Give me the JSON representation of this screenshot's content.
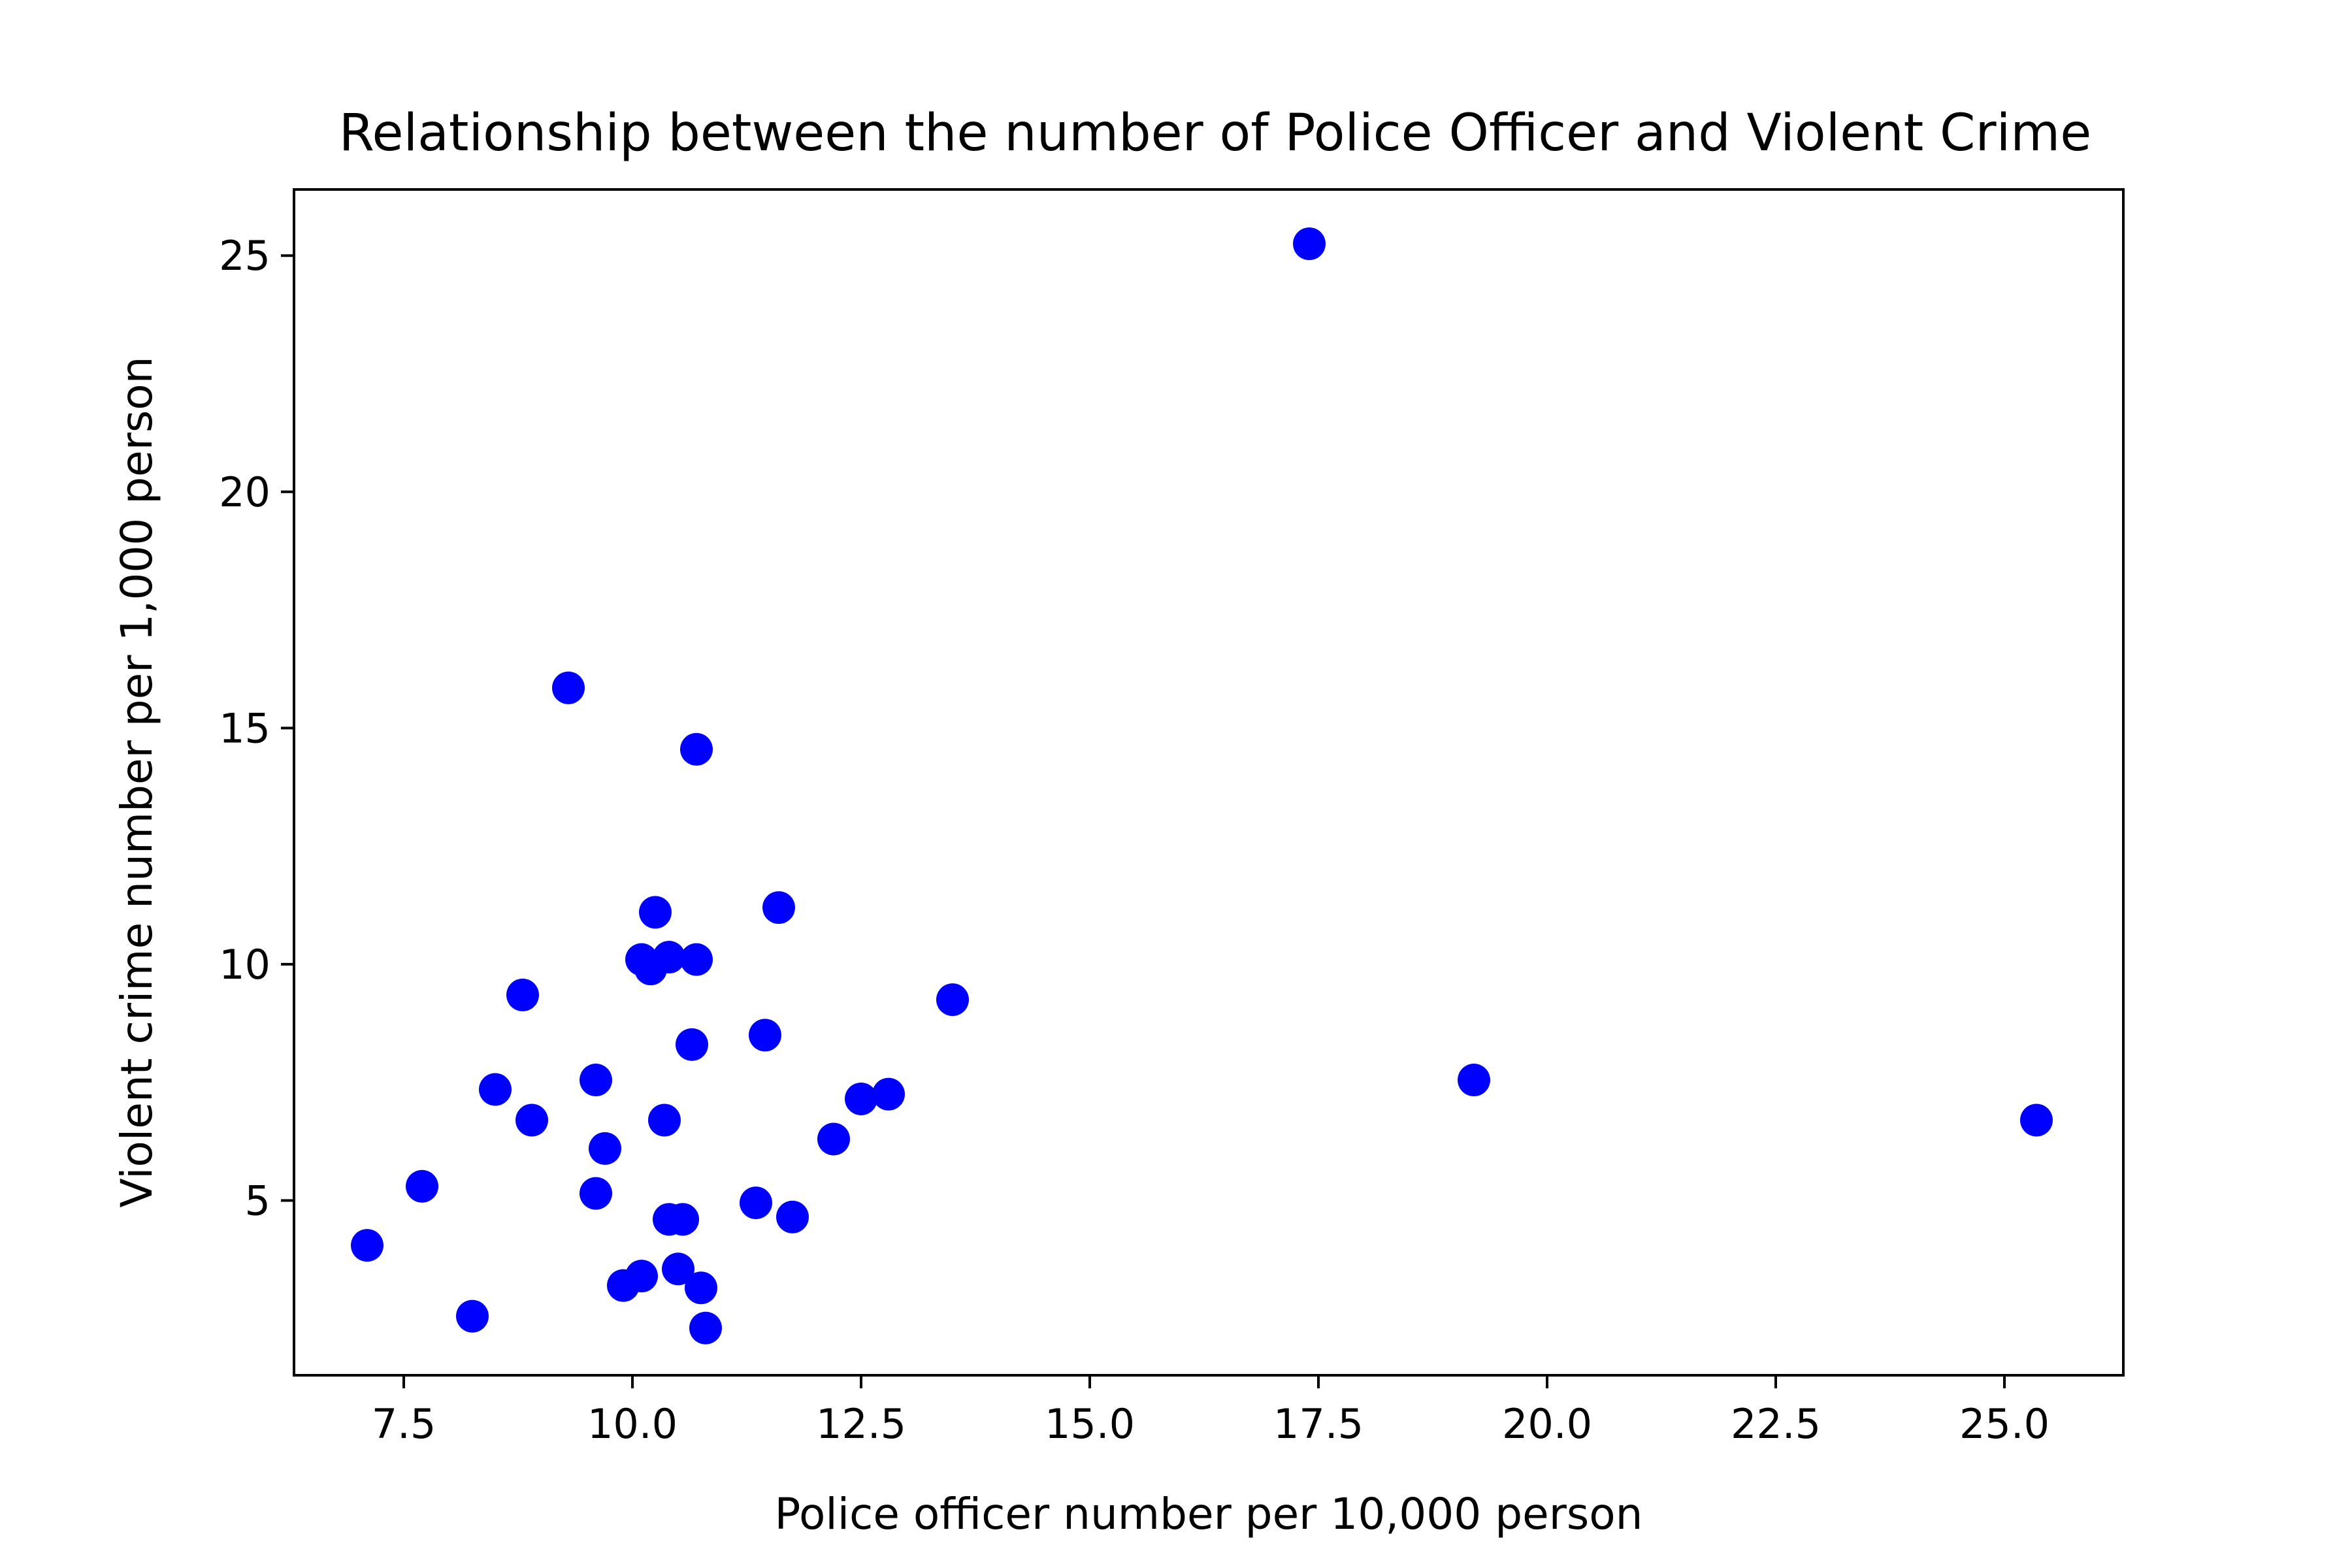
{
  "chart_data": {
    "type": "scatter",
    "title": "Relationship between the number of Police Officer and Violent Crime",
    "xlabel": "Police officer number per 10,000 person",
    "ylabel": "Violent crime number per 1,000 person",
    "xlim": [
      6.3,
      26.3
    ],
    "ylim": [
      1.3,
      26.4
    ],
    "xticks": [
      7.5,
      10.0,
      12.5,
      15.0,
      17.5,
      20.0,
      22.5,
      25.0
    ],
    "xtick_labels": [
      "7.5",
      "10.0",
      "12.5",
      "15.0",
      "17.5",
      "20.0",
      "22.5",
      "25.0"
    ],
    "yticks": [
      5,
      10,
      15,
      20,
      25
    ],
    "ytick_labels": [
      "5",
      "10",
      "15",
      "20",
      "25"
    ],
    "grid": false,
    "legend": "none",
    "marker_color": "#0000ff",
    "points": [
      {
        "x": 7.1,
        "y": 4.05
      },
      {
        "x": 7.7,
        "y": 5.3
      },
      {
        "x": 8.25,
        "y": 2.55
      },
      {
        "x": 8.5,
        "y": 7.35
      },
      {
        "x": 8.8,
        "y": 9.35
      },
      {
        "x": 8.9,
        "y": 6.7
      },
      {
        "x": 9.3,
        "y": 15.85
      },
      {
        "x": 9.6,
        "y": 7.55
      },
      {
        "x": 9.6,
        "y": 5.15
      },
      {
        "x": 9.7,
        "y": 6.1
      },
      {
        "x": 9.9,
        "y": 3.2
      },
      {
        "x": 10.1,
        "y": 3.4
      },
      {
        "x": 10.1,
        "y": 10.1
      },
      {
        "x": 10.2,
        "y": 9.9
      },
      {
        "x": 10.25,
        "y": 11.1
      },
      {
        "x": 10.35,
        "y": 6.7
      },
      {
        "x": 10.4,
        "y": 10.15
      },
      {
        "x": 10.4,
        "y": 4.6
      },
      {
        "x": 10.5,
        "y": 3.55
      },
      {
        "x": 10.55,
        "y": 4.6
      },
      {
        "x": 10.65,
        "y": 8.3
      },
      {
        "x": 10.7,
        "y": 14.55
      },
      {
        "x": 10.7,
        "y": 10.1
      },
      {
        "x": 10.75,
        "y": 3.15
      },
      {
        "x": 10.8,
        "y": 2.3
      },
      {
        "x": 11.35,
        "y": 4.95
      },
      {
        "x": 11.45,
        "y": 8.5
      },
      {
        "x": 11.6,
        "y": 11.2
      },
      {
        "x": 11.75,
        "y": 4.65
      },
      {
        "x": 12.2,
        "y": 6.3
      },
      {
        "x": 12.5,
        "y": 7.15
      },
      {
        "x": 12.8,
        "y": 7.25
      },
      {
        "x": 13.5,
        "y": 9.25
      },
      {
        "x": 17.4,
        "y": 25.25
      },
      {
        "x": 19.2,
        "y": 7.55
      },
      {
        "x": 25.35,
        "y": 6.7
      }
    ]
  }
}
